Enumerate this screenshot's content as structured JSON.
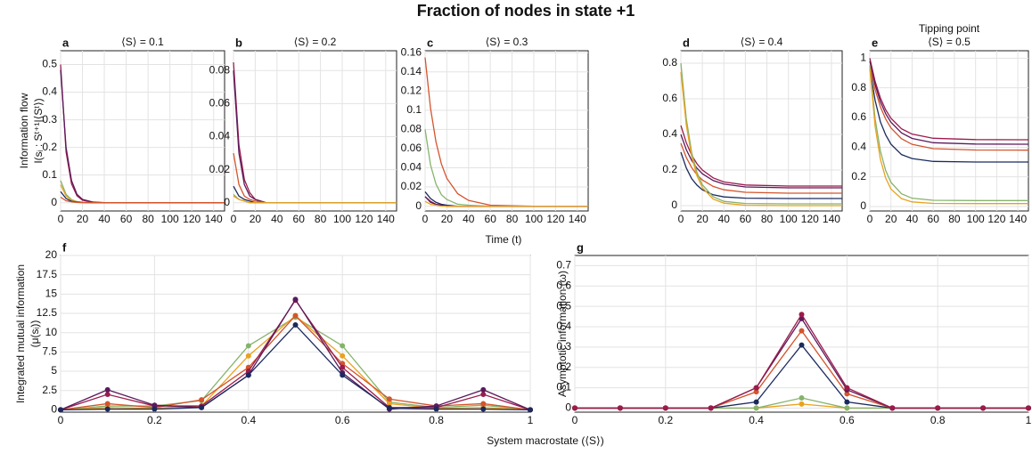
{
  "title": "Fraction of nodes in state +1",
  "time_label": "Time (t)",
  "macrostate_label": "System macrostate (⟨S⟩)",
  "chart_data": [
    {
      "type": "line",
      "letter": "a",
      "title": "⟨S⟩ = 0.1",
      "ylabel": [
        "Information flow",
        "I(sᵢ : Sᵗ⁺¹|⟨Sᵗ⟩)"
      ],
      "x": [
        0,
        5,
        10,
        15,
        20,
        30,
        40,
        60,
        100,
        150
      ],
      "xlim": [
        0,
        150
      ],
      "xticks": [
        0,
        20,
        40,
        60,
        80,
        100,
        120,
        140
      ],
      "ylim": [
        -0.03,
        0.55
      ],
      "yticks": [
        0,
        0.1,
        0.2,
        0.3,
        0.4,
        0.5
      ],
      "grid": true,
      "series": [
        {
          "color": "#9b1b4b",
          "values": [
            0.5,
            0.184,
            0.068,
            0.025,
            0.009,
            0.001,
            0,
            0,
            0,
            0
          ]
        },
        {
          "color": "#5b1a5c",
          "values": [
            0.48,
            0.2,
            0.08,
            0.03,
            0.012,
            0.002,
            0,
            0,
            0,
            0
          ]
        },
        {
          "color": "#86b36b",
          "values": [
            0.08,
            0.03,
            0.011,
            0.004,
            0.001,
            0,
            0,
            0,
            0,
            0
          ]
        },
        {
          "color": "#e9a21f",
          "values": [
            0.065,
            0.024,
            0.009,
            0.003,
            0.001,
            0,
            0,
            0,
            0,
            0
          ]
        },
        {
          "color": "#1b2a5e",
          "values": [
            0.04,
            0.015,
            0.005,
            0.002,
            0.001,
            0,
            0,
            0,
            0,
            0
          ]
        },
        {
          "color": "#d4542c",
          "values": [
            0.02,
            0.007,
            0.003,
            0.001,
            0,
            0,
            0,
            0,
            0,
            0
          ]
        }
      ]
    },
    {
      "type": "line",
      "letter": "b",
      "title": "⟨S⟩ = 0.2",
      "x": [
        0,
        5,
        10,
        15,
        20,
        30,
        40,
        60,
        100,
        150
      ],
      "xlim": [
        0,
        150
      ],
      "xticks": [
        0,
        20,
        40,
        60,
        80,
        100,
        120,
        140
      ],
      "ylim": [
        -0.005,
        0.092
      ],
      "yticks": [
        0,
        0.02,
        0.04,
        0.06,
        0.08
      ],
      "grid": true,
      "series": [
        {
          "color": "#9b1b4b",
          "values": [
            0.085,
            0.035,
            0.014,
            0.006,
            0.002,
            0,
            0,
            0,
            0,
            0
          ]
        },
        {
          "color": "#5b1a5c",
          "values": [
            0.08,
            0.03,
            0.011,
            0.004,
            0.002,
            0,
            0,
            0,
            0,
            0
          ]
        },
        {
          "color": "#d4542c",
          "values": [
            0.03,
            0.011,
            0.004,
            0.002,
            0.001,
            0,
            0,
            0,
            0,
            0
          ]
        },
        {
          "color": "#1b2a5e",
          "values": [
            0.01,
            0.004,
            0.002,
            0.001,
            0,
            0,
            0,
            0,
            0,
            0
          ]
        },
        {
          "color": "#86b36b",
          "values": [
            0.005,
            0.002,
            0.001,
            0,
            0,
            0,
            0,
            0,
            0,
            0
          ]
        },
        {
          "color": "#e9a21f",
          "values": [
            0.004,
            0.002,
            0.001,
            0,
            0,
            0,
            0,
            0,
            0,
            0
          ]
        }
      ]
    },
    {
      "type": "line",
      "letter": "c",
      "title": "⟨S⟩ = 0.3",
      "x": [
        0,
        5,
        10,
        15,
        20,
        30,
        40,
        60,
        100,
        150
      ],
      "xlim": [
        0,
        150
      ],
      "xticks": [
        0,
        20,
        40,
        60,
        80,
        100,
        120,
        140
      ],
      "ylim": [
        -0.005,
        0.162
      ],
      "yticks": [
        0,
        0.02,
        0.04,
        0.06,
        0.08,
        0.1,
        0.12,
        0.14,
        0.16
      ],
      "grid": true,
      "series": [
        {
          "color": "#d4542c",
          "values": [
            0.155,
            0.102,
            0.067,
            0.044,
            0.029,
            0.013,
            0.006,
            0.001,
            0,
            0
          ]
        },
        {
          "color": "#86b36b",
          "values": [
            0.08,
            0.043,
            0.023,
            0.012,
            0.007,
            0.002,
            0.001,
            0,
            0,
            0
          ]
        },
        {
          "color": "#1b2a5e",
          "values": [
            0.015,
            0.008,
            0.004,
            0.002,
            0.001,
            0,
            0,
            0,
            0,
            0
          ]
        },
        {
          "color": "#9b1b4b",
          "values": [
            0.01,
            0.005,
            0.002,
            0.001,
            0,
            0,
            0,
            0,
            0,
            0
          ]
        },
        {
          "color": "#5b1a5c",
          "values": [
            0.01,
            0.004,
            0.002,
            0.001,
            0,
            0,
            0,
            0,
            0,
            0
          ]
        },
        {
          "color": "#e9a21f",
          "values": [
            0.005,
            0.002,
            0.001,
            0,
            0,
            0,
            0,
            0,
            0,
            0
          ]
        }
      ]
    },
    {
      "type": "line",
      "letter": "d",
      "title": "⟨S⟩ = 0.4",
      "x": [
        0,
        5,
        10,
        15,
        20,
        30,
        40,
        60,
        100,
        150
      ],
      "xlim": [
        0,
        150
      ],
      "xticks": [
        0,
        20,
        40,
        60,
        80,
        100,
        120,
        140
      ],
      "ylim": [
        -0.03,
        0.87
      ],
      "yticks": [
        0,
        0.2,
        0.4,
        0.6,
        0.8
      ],
      "grid": true,
      "series": [
        {
          "color": "#9b1b4b",
          "values": [
            0.45,
            0.354,
            0.284,
            0.235,
            0.2,
            0.156,
            0.133,
            0.116,
            0.11,
            0.11
          ]
        },
        {
          "color": "#5b1a5c",
          "values": [
            0.4,
            0.315,
            0.254,
            0.21,
            0.179,
            0.141,
            0.121,
            0.105,
            0.1,
            0.1
          ]
        },
        {
          "color": "#d4542c",
          "values": [
            0.35,
            0.271,
            0.214,
            0.173,
            0.144,
            0.108,
            0.089,
            0.075,
            0.07,
            0.07
          ]
        },
        {
          "color": "#1b2a5e",
          "values": [
            0.3,
            0.212,
            0.152,
            0.115,
            0.089,
            0.061,
            0.049,
            0.042,
            0.04,
            0.04
          ]
        },
        {
          "color": "#86b36b",
          "values": [
            0.8,
            0.49,
            0.3,
            0.186,
            0.117,
            0.05,
            0.024,
            0.012,
            0.01,
            0.01
          ]
        },
        {
          "color": "#e9a21f",
          "values": [
            0.75,
            0.455,
            0.276,
            0.167,
            0.101,
            0.037,
            0.014,
            0.002,
            0,
            0
          ]
        }
      ]
    },
    {
      "type": "line",
      "letter": "e",
      "subtitle": "Tipping point",
      "title": "⟨S⟩ = 0.5",
      "x": [
        0,
        5,
        10,
        15,
        20,
        30,
        40,
        60,
        100,
        150
      ],
      "xlim": [
        0,
        150
      ],
      "xticks": [
        0,
        20,
        40,
        60,
        80,
        100,
        120,
        140
      ],
      "ylim": [
        -0.03,
        1.05
      ],
      "yticks": [
        0,
        0.2,
        0.4,
        0.6,
        0.8,
        1
      ],
      "grid": true,
      "series": [
        {
          "color": "#9b1b4b",
          "values": [
            1,
            0.844,
            0.732,
            0.652,
            0.595,
            0.524,
            0.488,
            0.46,
            0.451,
            0.45
          ]
        },
        {
          "color": "#5b1a5c",
          "values": [
            0.98,
            0.822,
            0.707,
            0.626,
            0.568,
            0.496,
            0.459,
            0.43,
            0.421,
            0.42
          ]
        },
        {
          "color": "#d4542c",
          "values": [
            0.95,
            0.789,
            0.672,
            0.59,
            0.53,
            0.457,
            0.419,
            0.39,
            0.381,
            0.38
          ]
        },
        {
          "color": "#1b2a5e",
          "values": [
            0.93,
            0.716,
            0.571,
            0.483,
            0.42,
            0.35,
            0.323,
            0.304,
            0.3,
            0.3
          ]
        },
        {
          "color": "#86b36b",
          "values": [
            0.95,
            0.592,
            0.375,
            0.243,
            0.163,
            0.086,
            0.056,
            0.042,
            0.04,
            0.04
          ]
        },
        {
          "color": "#e9a21f",
          "values": [
            0.93,
            0.542,
            0.319,
            0.192,
            0.118,
            0.053,
            0.031,
            0.021,
            0.02,
            0.02
          ]
        }
      ]
    },
    {
      "type": "line",
      "letter": "f",
      "markers": true,
      "ylabel": [
        "Integrated mutual information",
        "(μ(sᵢ))"
      ],
      "x": [
        0,
        0.1,
        0.2,
        0.3,
        0.4,
        0.5,
        0.6,
        0.7,
        0.8,
        0.9,
        1
      ],
      "xlim": [
        0,
        1
      ],
      "xticks": [
        0,
        0.2,
        0.4,
        0.6,
        0.8,
        1
      ],
      "ylim": [
        -0.3,
        20
      ],
      "yticks": [
        0,
        2.5,
        5,
        7.5,
        10,
        12.5,
        15,
        17.5,
        20
      ],
      "grid": true,
      "series": [
        {
          "color": "#86b36b",
          "values": [
            0,
            0.5,
            0.5,
            1.2,
            8.3,
            12,
            8.3,
            1,
            0.3,
            0.6,
            0
          ]
        },
        {
          "color": "#e9a21f",
          "values": [
            0,
            0.3,
            0.2,
            0.5,
            7,
            12.2,
            7,
            0.8,
            0.2,
            0.3,
            0
          ]
        },
        {
          "color": "#d4542c",
          "values": [
            0,
            0.8,
            0.3,
            1.3,
            5.5,
            12.2,
            6,
            1.4,
            0.5,
            0.8,
            0
          ]
        },
        {
          "color": "#9b1b4b",
          "values": [
            0,
            2,
            0.5,
            0.5,
            5,
            14.2,
            5.5,
            0.3,
            0.3,
            2,
            0
          ]
        },
        {
          "color": "#5b1a5c",
          "values": [
            0,
            2.6,
            0.6,
            0.3,
            4.5,
            14.3,
            4.8,
            0.1,
            0.5,
            2.6,
            0
          ]
        },
        {
          "color": "#1b2a5e",
          "values": [
            0,
            0.1,
            0.1,
            0.3,
            4.5,
            11,
            4.5,
            0.2,
            0.1,
            0.1,
            0
          ]
        }
      ]
    },
    {
      "type": "line",
      "letter": "g",
      "markers": true,
      "ylabel": [
        "Asymptotic information (ω)"
      ],
      "x": [
        0,
        0.1,
        0.2,
        0.3,
        0.4,
        0.5,
        0.6,
        0.7,
        0.8,
        0.9,
        1
      ],
      "xlim": [
        0,
        1
      ],
      "xticks": [
        0,
        0.2,
        0.4,
        0.6,
        0.8,
        1
      ],
      "ylim": [
        -0.02,
        0.75
      ],
      "yticks": [
        0,
        0.1,
        0.2,
        0.3,
        0.4,
        0.5,
        0.6,
        0.7
      ],
      "grid": true,
      "series": [
        {
          "color": "#e9a21f",
          "values": [
            0,
            0,
            0,
            0,
            0,
            0.02,
            0,
            0,
            0,
            0,
            0
          ]
        },
        {
          "color": "#86b36b",
          "values": [
            0,
            0,
            0,
            0,
            0,
            0.05,
            0,
            0,
            0,
            0,
            0
          ]
        },
        {
          "color": "#1b2a5e",
          "values": [
            0,
            0,
            0,
            0,
            0.03,
            0.31,
            0.03,
            0,
            0,
            0,
            0
          ]
        },
        {
          "color": "#d4542c",
          "values": [
            0,
            0,
            0,
            0,
            0.08,
            0.38,
            0.07,
            0,
            0,
            0,
            0
          ]
        },
        {
          "color": "#5b1a5c",
          "values": [
            0,
            0,
            0,
            0,
            0.1,
            0.44,
            0.09,
            0,
            0,
            0,
            0
          ]
        },
        {
          "color": "#9b1b4b",
          "values": [
            0,
            0,
            0,
            0,
            0.1,
            0.46,
            0.1,
            0,
            0,
            0,
            0
          ]
        }
      ]
    }
  ]
}
